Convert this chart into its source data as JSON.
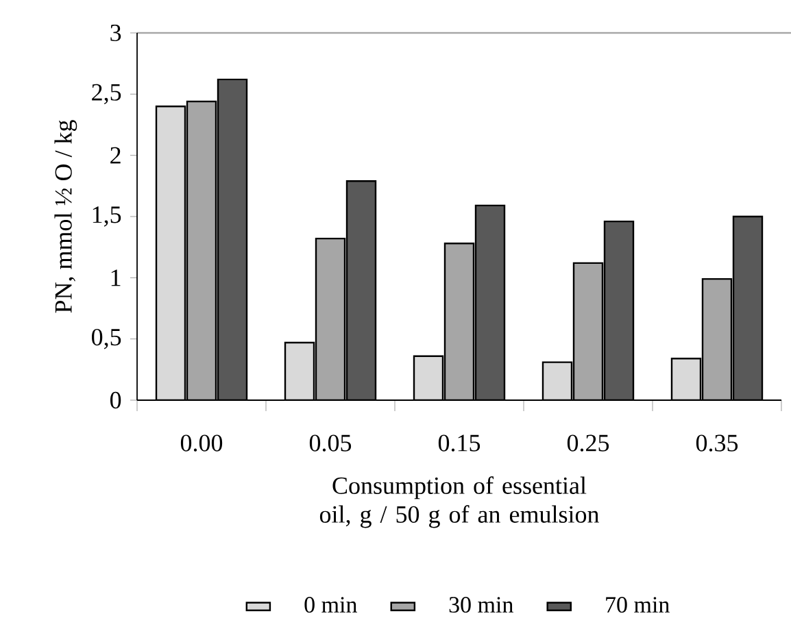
{
  "chart_data": {
    "type": "bar",
    "xlabel": "Consumption of essential oil, g / 50 g of an emulsion",
    "ylabel": "PN, mmol ½ O / kg",
    "categories": [
      "0.00",
      "0.05",
      "0.15",
      "0.25",
      "0.35"
    ],
    "series": [
      {
        "name": "0 min",
        "color": "#d9d9d9",
        "values": [
          2.4,
          0.47,
          0.36,
          0.31,
          0.34
        ]
      },
      {
        "name": "30 min",
        "color": "#a6a6a6",
        "values": [
          2.44,
          1.32,
          1.28,
          1.12,
          0.99
        ]
      },
      {
        "name": "70 min",
        "color": "#595959",
        "values": [
          2.62,
          1.79,
          1.59,
          1.46,
          1.5
        ]
      }
    ],
    "ylim": [
      0,
      3
    ],
    "yticks": [
      0,
      {
        "value": 0.5,
        "label": "0,5"
      },
      1,
      {
        "value": 1.5,
        "label": "1,5"
      },
      2,
      {
        "value": 2.5,
        "label": "2,5"
      },
      3
    ],
    "legend": "bottom"
  }
}
